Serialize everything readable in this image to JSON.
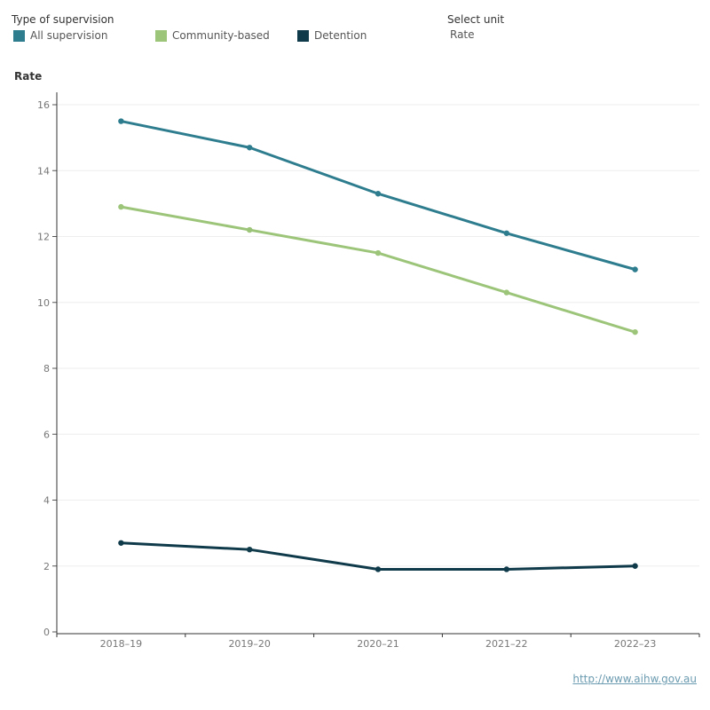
{
  "legend": {
    "title": "Type of supervision",
    "items": [
      {
        "label": "All supervision",
        "color": "#2e7d8f"
      },
      {
        "label": "Community-based",
        "color": "#9dc57a"
      },
      {
        "label": "Detention",
        "color": "#0f3a4a"
      }
    ]
  },
  "unit_selector": {
    "title": "Select unit",
    "value": "Rate"
  },
  "source_link": "http://www.aihw.gov.au",
  "chart_data": {
    "type": "line",
    "ylabel": "Rate",
    "ylim": [
      0,
      16
    ],
    "yticks": [
      0,
      2,
      4,
      6,
      8,
      10,
      12,
      14,
      16
    ],
    "categories": [
      "2018–19",
      "2019–20",
      "2020–21",
      "2021–22",
      "2022–23"
    ],
    "grid": true,
    "legend_position": "top-left",
    "series": [
      {
        "name": "All supervision",
        "color": "#2e7d8f",
        "values": [
          15.5,
          14.7,
          13.3,
          12.1,
          11.0
        ]
      },
      {
        "name": "Community-based",
        "color": "#9dc57a",
        "values": [
          12.9,
          12.2,
          11.5,
          10.3,
          9.1
        ]
      },
      {
        "name": "Detention",
        "color": "#0f3a4a",
        "values": [
          2.7,
          2.5,
          1.9,
          1.9,
          2.0
        ]
      }
    ]
  }
}
